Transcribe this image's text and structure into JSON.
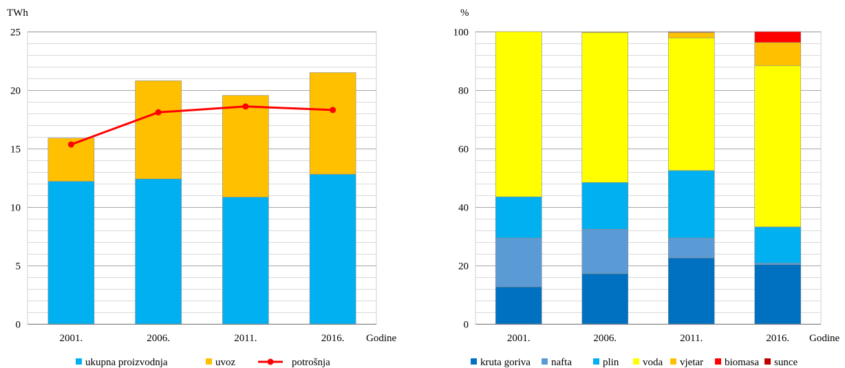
{
  "chart_data": [
    {
      "type": "bar",
      "stacked": true,
      "ylabel": "TWh",
      "xlabel": "Godine",
      "ylim": [
        0,
        25
      ],
      "yticks": [
        0,
        5,
        10,
        15,
        20,
        25
      ],
      "minor_grid_step": 1,
      "grid": true,
      "legend_position": "bottom",
      "categories": [
        "2001.",
        "2006.",
        "2011.",
        "2016."
      ],
      "series": [
        {
          "name": "ukupna proizvodnja",
          "values": [
            12.2,
            12.4,
            10.85,
            12.8
          ],
          "color": "#00b0f0"
        },
        {
          "name": "uvoz",
          "values": [
            3.7,
            8.4,
            8.7,
            8.7
          ],
          "color": "#ffc000"
        }
      ],
      "lines": [
        {
          "name": "potrošnja",
          "values": [
            15.35,
            18.1,
            18.6,
            18.3
          ],
          "color": "#ff0000"
        }
      ]
    },
    {
      "type": "bar",
      "stacked": true,
      "ylabel": "%",
      "xlabel": "Godine",
      "ylim": [
        0,
        100
      ],
      "yticks": [
        0,
        20,
        40,
        60,
        80,
        100
      ],
      "minor_grid_step": 4,
      "grid": true,
      "legend_position": "bottom",
      "categories": [
        "2001.",
        "2006.",
        "2011.",
        "2016."
      ],
      "series": [
        {
          "name": "kruta goriva",
          "values": [
            12.7,
            17.2,
            22.6,
            20.3
          ],
          "color": "#0070c0"
        },
        {
          "name": "nafta",
          "values": [
            16.7,
            15.2,
            6.8,
            0.5
          ],
          "color": "#5b9bd5"
        },
        {
          "name": "plin",
          "values": [
            14.1,
            16.0,
            23.1,
            12.4
          ],
          "color": "#00b0f0"
        },
        {
          "name": "voda",
          "values": [
            56.5,
            51.3,
            45.4,
            55.2
          ],
          "color": "#ffff00"
        },
        {
          "name": "vjetar",
          "values": [
            0,
            0.2,
            1.8,
            7.9
          ],
          "color": "#ffc000"
        },
        {
          "name": "biomasa",
          "values": [
            0,
            0,
            0.2,
            3.7
          ],
          "color": "#ff0000"
        },
        {
          "name": "sunce",
          "values": [
            0,
            0,
            0.1,
            0.0
          ],
          "color": "#c00000"
        }
      ]
    }
  ]
}
